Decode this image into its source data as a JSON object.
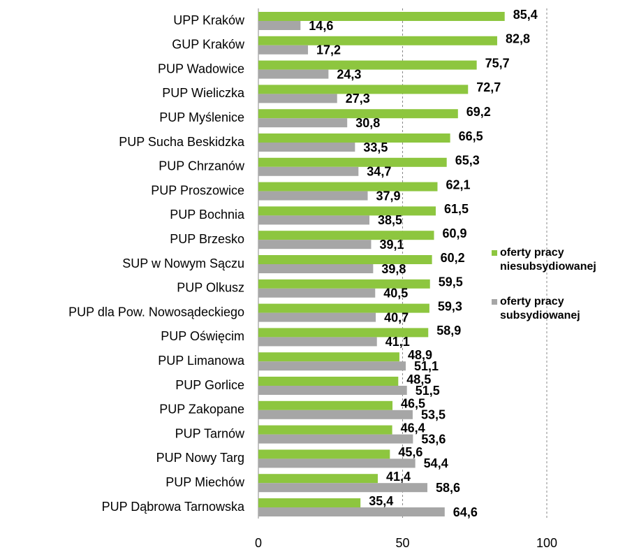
{
  "chart_data": {
    "type": "barh",
    "categories": [
      "UPP Kraków",
      "GUP Kraków",
      "PUP Wadowice",
      "PUP Wieliczka",
      "PUP Myślenice",
      "PUP Sucha Beskidzka",
      "PUP Chrzanów",
      "PUP Proszowice",
      "PUP Bochnia",
      "PUP Brzesko",
      "SUP w Nowym Sączu",
      "PUP Olkusz",
      "PUP dla Pow. Nowosądeckiego",
      "PUP Oświęcim",
      "PUP Limanowa",
      "PUP Gorlice",
      "PUP Zakopane",
      "PUP Tarnów",
      "PUP Nowy Targ",
      "PUP Miechów",
      "PUP Dąbrowa Tarnowska"
    ],
    "series": [
      {
        "name": "oferty pracy niesubsydiowanej",
        "color": "#8dc63f",
        "values": [
          85.4,
          82.8,
          75.7,
          72.7,
          69.2,
          66.5,
          65.3,
          62.1,
          61.5,
          60.9,
          60.2,
          59.5,
          59.3,
          58.9,
          48.9,
          48.5,
          46.5,
          46.4,
          45.6,
          41.4,
          35.4
        ],
        "value_labels": [
          "85,4",
          "82,8",
          "75,7",
          "72,7",
          "69,2",
          "66,5",
          "65,3",
          "62,1",
          "61,5",
          "60,9",
          "60,2",
          "59,5",
          "59,3",
          "58,9",
          "48,9",
          "48,5",
          "46,5",
          "46,4",
          "45,6",
          "41,4",
          "35,4"
        ]
      },
      {
        "name": "oferty pracy subsydiowanej",
        "color": "#a6a6a6",
        "values": [
          14.6,
          17.2,
          24.3,
          27.3,
          30.8,
          33.5,
          34.7,
          37.9,
          38.5,
          39.1,
          39.8,
          40.5,
          40.7,
          41.1,
          51.1,
          51.5,
          53.5,
          53.6,
          54.4,
          58.6,
          64.6
        ],
        "value_labels": [
          "14,6",
          "17,2",
          "24,3",
          "27,3",
          "30,8",
          "33,5",
          "34,7",
          "37,9",
          "38,5",
          "39,1",
          "39,8",
          "40,5",
          "40,7",
          "41,1",
          "51,1",
          "51,5",
          "53,5",
          "53,6",
          "54,4",
          "58,6",
          "64,6"
        ]
      }
    ],
    "xlim": [
      0,
      100
    ],
    "xticks": [
      0,
      50,
      100
    ],
    "grid": true,
    "legend": "right"
  }
}
